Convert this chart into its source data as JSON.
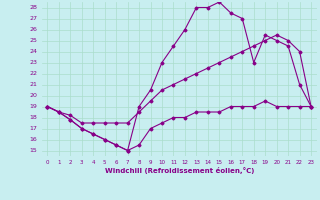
{
  "xlabel": "Windchill (Refroidissement éolien,°C)",
  "bg_color": "#c8eef0",
  "line_color": "#880088",
  "grid_color": "#aaddcc",
  "xlim": [
    -0.5,
    23.5
  ],
  "ylim": [
    14.5,
    28.5
  ],
  "xticks": [
    0,
    1,
    2,
    3,
    4,
    5,
    6,
    7,
    8,
    9,
    10,
    11,
    12,
    13,
    14,
    15,
    16,
    17,
    18,
    19,
    20,
    21,
    22,
    23
  ],
  "yticks": [
    15,
    16,
    17,
    18,
    19,
    20,
    21,
    22,
    23,
    24,
    25,
    26,
    27,
    28
  ],
  "line1_x": [
    0,
    1,
    2,
    3,
    4,
    5,
    6,
    7,
    8,
    9,
    10,
    11,
    12,
    13,
    14,
    15,
    16,
    17,
    18,
    19,
    20,
    21,
    22,
    23
  ],
  "line1_y": [
    19,
    18.5,
    17.8,
    17,
    16.5,
    16,
    15.5,
    15,
    15.5,
    17,
    17.5,
    18,
    18,
    18.5,
    18.5,
    18.5,
    19,
    19,
    19,
    19.5,
    19,
    19,
    19,
    19
  ],
  "line2_x": [
    0,
    1,
    2,
    3,
    4,
    5,
    6,
    7,
    8,
    9,
    10,
    11,
    12,
    13,
    14,
    15,
    16,
    17,
    18,
    19,
    20,
    21,
    22,
    23
  ],
  "line2_y": [
    19,
    18.5,
    18.2,
    17.5,
    17.5,
    17.5,
    17.5,
    17.5,
    18.5,
    19.5,
    20.5,
    21,
    21.5,
    22,
    22.5,
    23,
    23.5,
    24,
    24.5,
    25,
    25.5,
    25,
    24,
    19
  ],
  "line3_x": [
    0,
    1,
    2,
    3,
    4,
    5,
    6,
    7,
    8,
    9,
    10,
    11,
    12,
    13,
    14,
    15,
    16,
    17,
    18,
    19,
    20,
    21,
    22,
    23
  ],
  "line3_y": [
    19,
    18.5,
    17.8,
    17,
    16.5,
    16,
    15.5,
    15,
    19,
    20.5,
    23,
    24.5,
    26,
    28,
    28,
    28.5,
    27.5,
    27,
    23,
    25.5,
    25,
    24.5,
    21,
    19
  ]
}
